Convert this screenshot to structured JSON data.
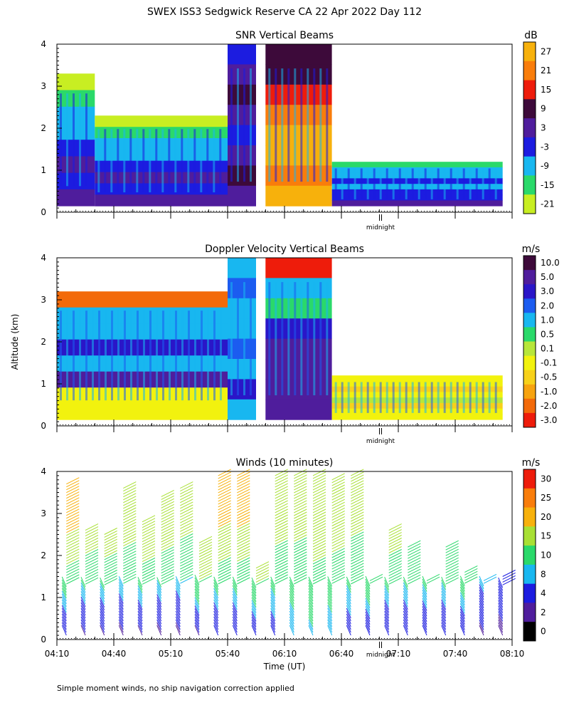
{
  "page_title": "SWEX ISS3 Sedgwick Reserve CA  22 Apr 2022 Day 112",
  "shared_ylabel": "Altitude (km)",
  "footer_note": "Simple moment winds, no ship navigation correction applied",
  "chart_data": [
    {
      "type": "heatmap",
      "title": "SNR Vertical Beams",
      "colorbar_unit": "dB",
      "ylabel": "Altitude (km)",
      "xlabel": "",
      "xlim": [
        "04:10",
        "08:10"
      ],
      "ylim": [
        0,
        4
      ],
      "y_tick_labels": [
        "0",
        "1",
        "2",
        "3",
        "4"
      ],
      "midnight_label": "midnight",
      "colorbar_labels": [
        "27",
        "21",
        "15",
        "9",
        "3",
        "-3",
        "-9",
        "-15",
        "-21"
      ],
      "colorbar_colors": [
        "#f7b10c",
        "#f97d0b",
        "#ee1c0b",
        "#3d0a3a",
        "#4f1d9c",
        "#1c1ce0",
        "#18b7f0",
        "#2ad96a",
        "#c8ee22"
      ],
      "grid": false,
      "regions": [
        {
          "t0": "04:10",
          "t1": "04:30",
          "top_km": 3.3,
          "description": "blue/cyan noisy clutter"
        },
        {
          "t0": "04:30",
          "t1": "05:40",
          "top_km": 2.3,
          "description": "mixed green/cyan/blue returns"
        },
        {
          "t0": "05:40",
          "t1": "05:55",
          "top_km": 4.0,
          "description": "vertical blue/purple column"
        },
        {
          "t0": "06:00",
          "t1": "06:35",
          "top_km": 4.0,
          "description": "strong echo, orange/red core up to ~2.8 km, dark purple above"
        },
        {
          "t0": "06:35",
          "t1": "08:05",
          "top_km": 1.2,
          "description": "weak cyan/blue layer"
        }
      ]
    },
    {
      "type": "heatmap",
      "title": "Doppler Velocity Vertical Beams",
      "colorbar_unit": "m/s",
      "ylabel": "Altitude (km)",
      "xlabel": "",
      "xlim": [
        "04:10",
        "08:10"
      ],
      "ylim": [
        0,
        4
      ],
      "y_tick_labels": [
        "0",
        "1",
        "2",
        "3",
        "4"
      ],
      "midnight_label": "midnight",
      "colorbar_labels": [
        "10.0",
        "5.0",
        "3.0",
        "2.0",
        "1.0",
        "0.5",
        "0.1",
        "-0.1",
        "-0.5",
        "-1.0",
        "-2.0",
        "-3.0"
      ],
      "colorbar_colors": [
        "#3d0a3a",
        "#4f1d9c",
        "#2a16c8",
        "#1c5cf0",
        "#18b7f0",
        "#2ad96a",
        "#b7e63a",
        "#f2f20e",
        "#f7d11a",
        "#f7a30f",
        "#f36a0a",
        "#ee1c0b"
      ],
      "grid": false,
      "regions": [
        {
          "t0": "04:10",
          "t1": "05:40",
          "top_km": 3.2,
          "description": "cyan/blue with purple streaks, yellow near ground"
        },
        {
          "t0": "05:40",
          "t1": "05:55",
          "top_km": 4.0,
          "description": "cyan column"
        },
        {
          "t0": "06:00",
          "t1": "06:35",
          "top_km": 4.0,
          "description": "deep purple core, red/orange/green fringes aloft"
        },
        {
          "t0": "06:35",
          "t1": "08:05",
          "top_km": 1.2,
          "description": "yellow/orange weak motion"
        }
      ]
    },
    {
      "type": "wind_barbs",
      "title": "Winds (10 minutes)",
      "colorbar_unit": "m/s",
      "ylabel": "Altitude (km)",
      "xlabel": "Time (UT)",
      "xlim": [
        "04:10",
        "08:10"
      ],
      "ylim": [
        0,
        4
      ],
      "x_tick_labels": [
        "04:10",
        "04:40",
        "05:10",
        "05:40",
        "06:10",
        "06:40",
        "07:10",
        "07:40",
        "08:10"
      ],
      "y_tick_labels": [
        "0",
        "1",
        "2",
        "3",
        "4"
      ],
      "midnight_label": "midnight",
      "colorbar_labels": [
        "30",
        "25",
        "20",
        "15",
        "10",
        "8",
        "4",
        "2",
        "0"
      ],
      "colorbar_colors": [
        "#ee1c0b",
        "#f97d0b",
        "#f7b10c",
        "#a8e034",
        "#2ad96a",
        "#18b7f0",
        "#1c1ce0",
        "#4f1d9c",
        "#000000"
      ],
      "grid": false,
      "profiles": [
        {
          "time": "04:15",
          "top_km": 3.7,
          "upper_speed_ms": 22,
          "lower_speed_ms": 4
        },
        {
          "time": "04:25",
          "top_km": 2.6,
          "upper_speed_ms": 15,
          "lower_speed_ms": 3
        },
        {
          "time": "04:35",
          "top_km": 2.5,
          "upper_speed_ms": 15,
          "lower_speed_ms": 3
        },
        {
          "time": "04:45",
          "top_km": 3.6,
          "upper_speed_ms": 18,
          "lower_speed_ms": 3
        },
        {
          "time": "04:55",
          "top_km": 2.8,
          "upper_speed_ms": 17,
          "lower_speed_ms": 3
        },
        {
          "time": "05:05",
          "top_km": 3.4,
          "upper_speed_ms": 18,
          "lower_speed_ms": 3
        },
        {
          "time": "05:15",
          "top_km": 3.6,
          "upper_speed_ms": 17,
          "lower_speed_ms": 3
        },
        {
          "time": "05:25",
          "top_km": 2.3,
          "upper_speed_ms": 18,
          "lower_speed_ms": 3
        },
        {
          "time": "05:35",
          "top_km": 3.9,
          "upper_speed_ms": 22,
          "lower_speed_ms": 4
        },
        {
          "time": "05:45",
          "top_km": 3.9,
          "upper_speed_ms": 22,
          "lower_speed_ms": 4
        },
        {
          "time": "05:55",
          "top_km": 1.7,
          "upper_speed_ms": 15,
          "lower_speed_ms": 4
        },
        {
          "time": "06:05",
          "top_km": 3.9,
          "upper_speed_ms": 18,
          "lower_speed_ms": 6
        },
        {
          "time": "06:15",
          "top_km": 3.9,
          "upper_speed_ms": 17,
          "lower_speed_ms": 8
        },
        {
          "time": "06:25",
          "top_km": 3.9,
          "upper_speed_ms": 19,
          "lower_speed_ms": 9
        },
        {
          "time": "06:35",
          "top_km": 3.8,
          "upper_speed_ms": 18,
          "lower_speed_ms": 8
        },
        {
          "time": "06:45",
          "top_km": 3.9,
          "upper_speed_ms": 17,
          "lower_speed_ms": 6
        },
        {
          "time": "06:55",
          "top_km": 1.4,
          "upper_speed_ms": 12,
          "lower_speed_ms": 4
        },
        {
          "time": "07:05",
          "top_km": 2.6,
          "upper_speed_ms": 15,
          "lower_speed_ms": 4
        },
        {
          "time": "07:15",
          "top_km": 2.2,
          "upper_speed_ms": 13,
          "lower_speed_ms": 4
        },
        {
          "time": "07:25",
          "top_km": 1.4,
          "upper_speed_ms": 10,
          "lower_speed_ms": 4
        },
        {
          "time": "07:35",
          "top_km": 2.2,
          "upper_speed_ms": 13,
          "lower_speed_ms": 4
        },
        {
          "time": "07:45",
          "top_km": 1.6,
          "upper_speed_ms": 12,
          "lower_speed_ms": 4
        },
        {
          "time": "07:55",
          "top_km": 1.4,
          "upper_speed_ms": 8,
          "lower_speed_ms": 3
        },
        {
          "time": "08:05",
          "top_km": 1.5,
          "upper_speed_ms": 6,
          "lower_speed_ms": 3
        }
      ]
    }
  ]
}
